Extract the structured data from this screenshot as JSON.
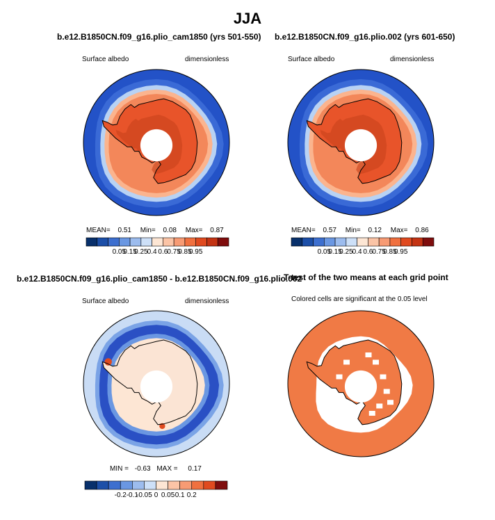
{
  "figure": {
    "title": "JJA"
  },
  "chart_data": [
    {
      "type": "heatmap",
      "title": "b.e12.B1850CN.f09_g16.plio_cam1850 (yrs 501-550)",
      "left_label": "Surface albedo",
      "right_label": "dimensionless",
      "stats": {
        "mean_label": "MEAN=",
        "mean": "0.51",
        "min_label": "Min=",
        "min": "0.08",
        "max_label": "Max=",
        "max": "0.87"
      },
      "colorbar": {
        "ticks": [
          "0.05",
          "0.15",
          "0.25",
          "0.4",
          "0.6",
          "0.75",
          "0.85",
          "0.95"
        ],
        "colors": [
          "#08306b",
          "#1c4fa8",
          "#3d6fcf",
          "#6a97e2",
          "#9cbcee",
          "#cde0f8",
          "#fde6d4",
          "#fbc4a6",
          "#f79b74",
          "#f0703f",
          "#e04a1f",
          "#c43414",
          "#7f0d0d"
        ]
      },
      "field": {
        "ocean": "#2352c7",
        "ice_edge": "#b8d2f4",
        "land": "#e8542a"
      }
    },
    {
      "type": "heatmap",
      "title": "b.e12.B1850CN.f09_g16.plio.002 (yrs 601-650)",
      "left_label": "Surface albedo",
      "right_label": "dimensionless",
      "stats": {
        "mean_label": "MEAN=",
        "mean": "0.57",
        "min_label": "Min=",
        "min": "0.12",
        "max_label": "Max=",
        "max": "0.86"
      },
      "colorbar": {
        "ticks": [
          "0.05",
          "0.15",
          "0.25",
          "0.4",
          "0.6",
          "0.75",
          "0.85",
          "0.95"
        ],
        "colors": [
          "#08306b",
          "#1c4fa8",
          "#3d6fcf",
          "#6a97e2",
          "#9cbcee",
          "#cde0f8",
          "#fde6d4",
          "#fbc4a6",
          "#f79b74",
          "#f0703f",
          "#e04a1f",
          "#c43414",
          "#7f0d0d"
        ]
      },
      "field": {
        "ocean": "#2352c7",
        "ice_edge": "#b8d2f4",
        "land": "#e8542a"
      }
    },
    {
      "type": "heatmap",
      "title": "b.e12.B1850CN.f09_g16.plio_cam1850 - b.e12.B1850CN.f09_g16.plio.002",
      "left_label": "Surface albedo",
      "right_label": "dimensionless",
      "stats": {
        "min_label": "MIN =",
        "min": "-0.63",
        "max_label": "MAX =",
        "max": "0.17"
      },
      "colorbar": {
        "ticks": [
          "-0.2",
          "-0.1",
          "-0.05",
          "0",
          "0.05",
          "0.1",
          "0.2"
        ],
        "colors": [
          "#08306b",
          "#1c4fa8",
          "#3d6fcf",
          "#6a97e2",
          "#9cbcee",
          "#cde0f8",
          "#fde6d4",
          "#fbc4a6",
          "#f79b74",
          "#f0703f",
          "#e04a1f",
          "#7f0d0d"
        ]
      },
      "field": {
        "outer": "#c9dcf5",
        "ring": "#2a50c4",
        "land": "#fbe4d4"
      }
    },
    {
      "type": "heatmap",
      "title": "T-test of the two means at each grid point",
      "subtitle": "Colored cells are significant at the 0.05 level",
      "field": {
        "significant": "#f07a45",
        "not_significant": "#ffffff"
      }
    }
  ]
}
